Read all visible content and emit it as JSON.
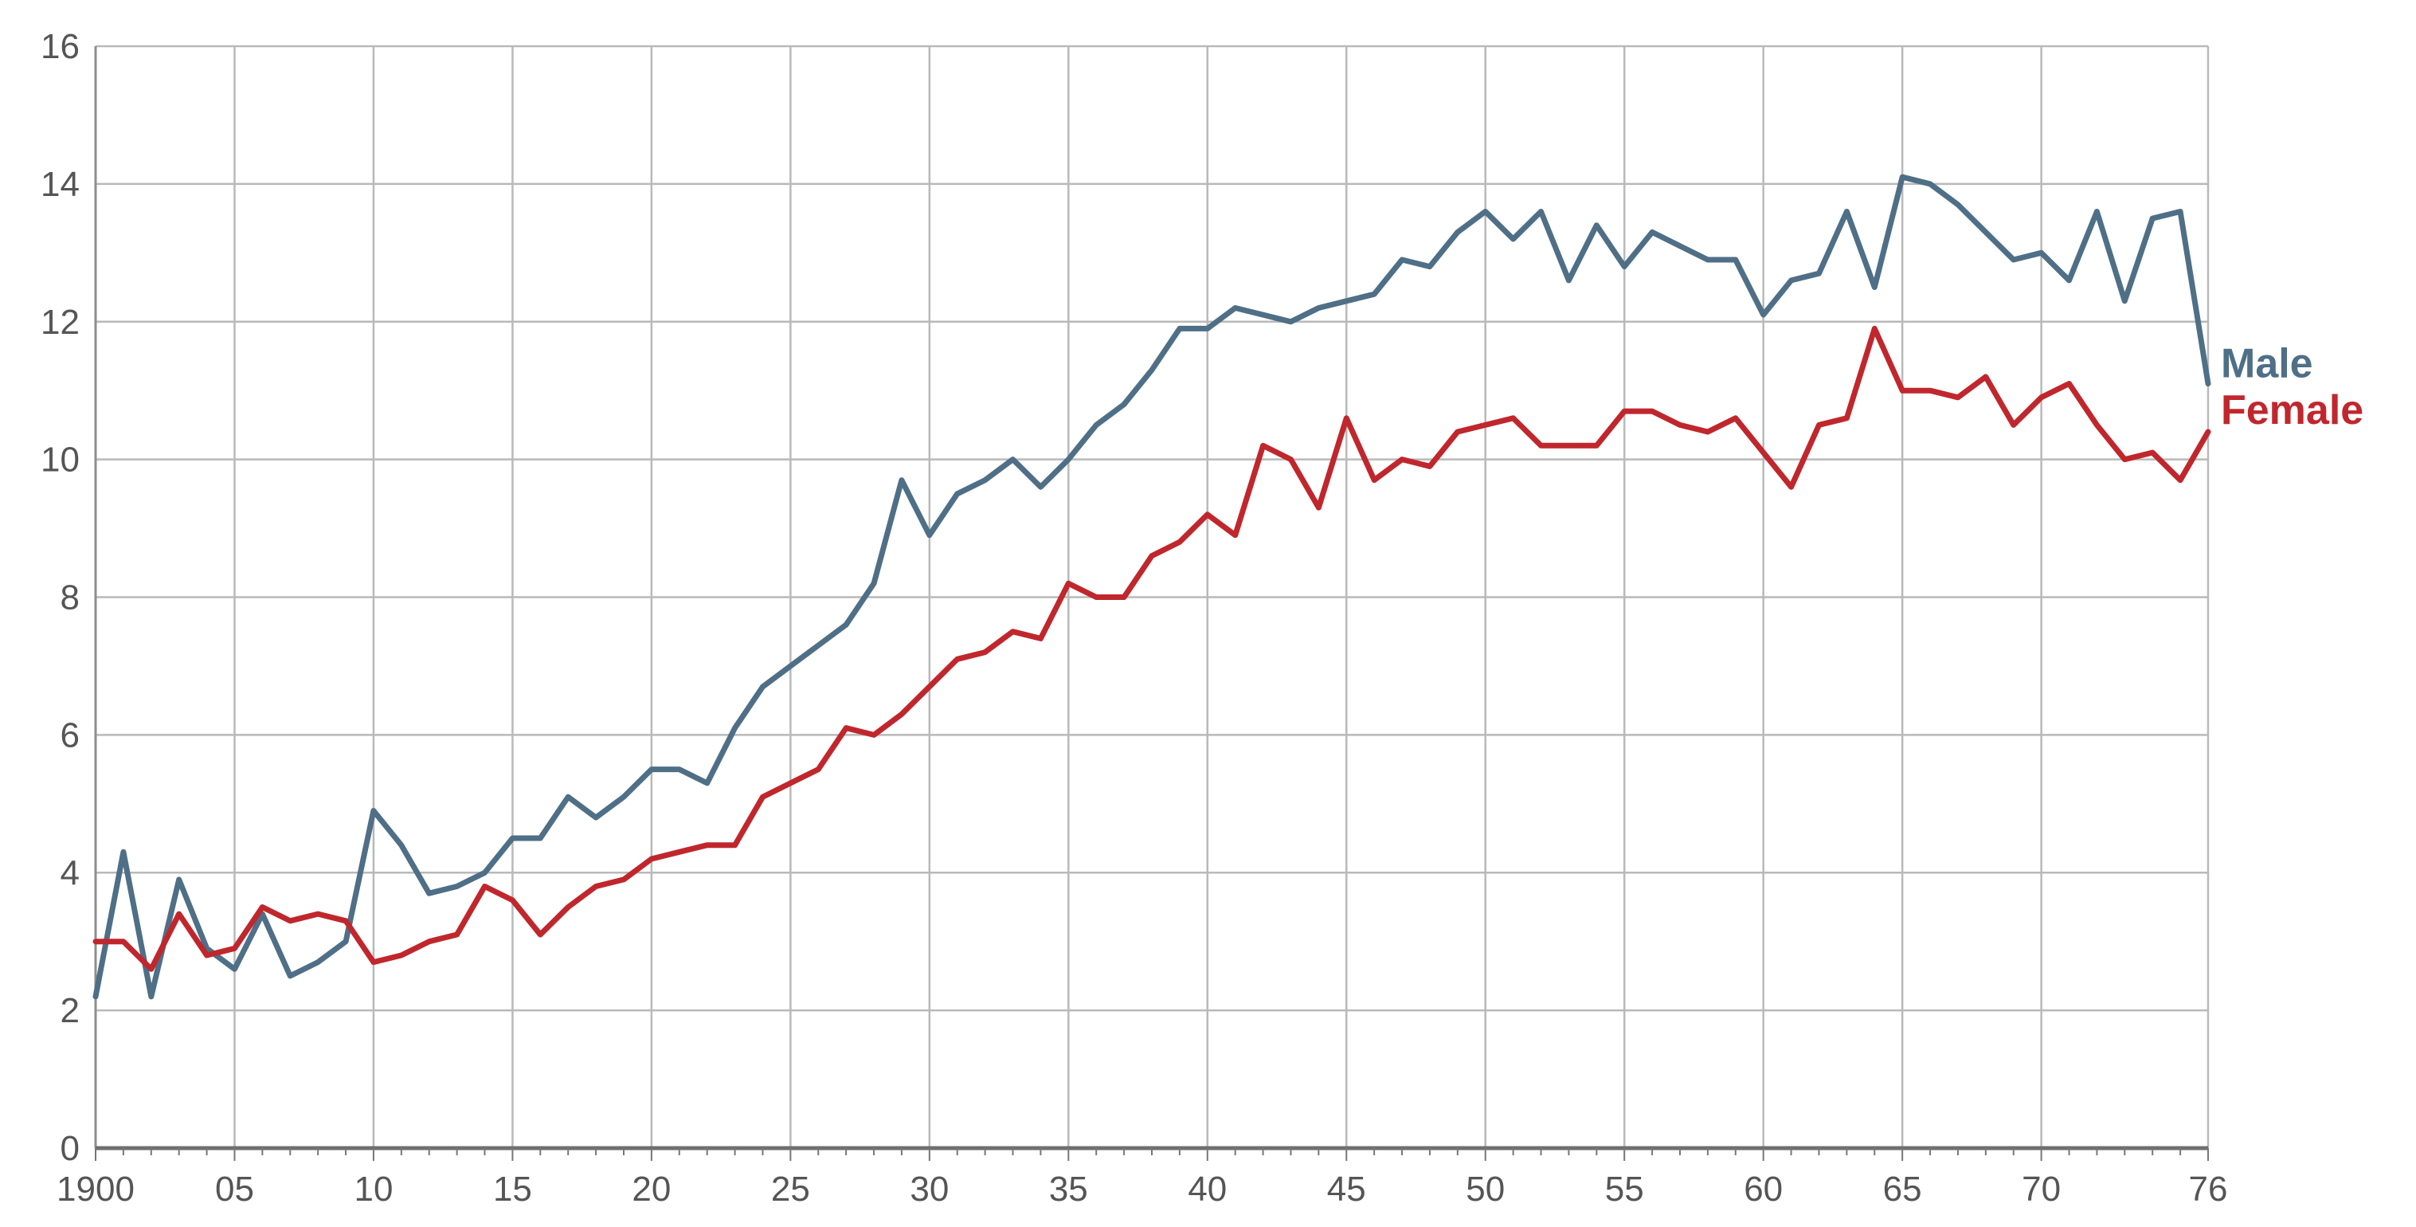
{
  "chart_data": {
    "type": "line",
    "title": "",
    "xlabel": "",
    "ylabel": "",
    "xlim": [
      1900,
      1976
    ],
    "ylim": [
      0,
      16
    ],
    "grid": true,
    "legend": "end-of-line labels on the right",
    "x_tick_values": [
      1900,
      1905,
      1910,
      1915,
      1920,
      1925,
      1930,
      1935,
      1940,
      1945,
      1950,
      1955,
      1960,
      1965,
      1970,
      1976
    ],
    "x_tick_labels": [
      "1900",
      "05",
      "10",
      "15",
      "20",
      "25",
      "30",
      "35",
      "40",
      "45",
      "50",
      "55",
      "60",
      "65",
      "70",
      "76"
    ],
    "y_tick_values": [
      0,
      2,
      4,
      6,
      8,
      10,
      12,
      14,
      16
    ],
    "y_tick_labels": [
      "0",
      "2",
      "4",
      "6",
      "8",
      "10",
      "12",
      "14",
      "16"
    ],
    "x": [
      1900,
      1901,
      1902,
      1903,
      1904,
      1905,
      1906,
      1907,
      1908,
      1909,
      1910,
      1911,
      1912,
      1913,
      1914,
      1915,
      1916,
      1917,
      1918,
      1919,
      1920,
      1921,
      1922,
      1923,
      1924,
      1925,
      1926,
      1927,
      1928,
      1929,
      1930,
      1931,
      1932,
      1933,
      1934,
      1935,
      1936,
      1937,
      1938,
      1939,
      1940,
      1941,
      1942,
      1943,
      1944,
      1945,
      1946,
      1947,
      1948,
      1949,
      1950,
      1951,
      1952,
      1953,
      1954,
      1955,
      1956,
      1957,
      1958,
      1959,
      1960,
      1961,
      1962,
      1963,
      1964,
      1965,
      1966,
      1967,
      1968,
      1969,
      1970,
      1971,
      1972,
      1973,
      1974,
      1975,
      1976
    ],
    "series": [
      {
        "name": "Male",
        "color": "#4f6f87",
        "values": [
          2.2,
          4.3,
          2.2,
          3.9,
          2.9,
          2.6,
          3.4,
          2.5,
          2.7,
          3.0,
          4.9,
          4.4,
          3.7,
          3.8,
          4.0,
          4.5,
          4.5,
          5.1,
          4.8,
          5.1,
          5.5,
          5.5,
          5.3,
          6.1,
          6.7,
          7.0,
          7.3,
          7.6,
          8.2,
          9.7,
          8.9,
          9.5,
          9.7,
          10.0,
          9.6,
          10.0,
          10.5,
          10.8,
          11.3,
          11.9,
          11.9,
          12.2,
          12.1,
          12.0,
          12.2,
          12.3,
          12.4,
          12.9,
          12.8,
          13.3,
          13.6,
          13.2,
          13.6,
          12.6,
          13.4,
          12.8,
          13.3,
          13.1,
          12.9,
          12.9,
          12.1,
          12.6,
          12.7,
          13.6,
          12.5,
          14.1,
          14.0,
          13.7,
          13.3,
          12.9,
          13.0,
          12.6,
          13.6,
          12.3,
          13.5,
          13.6,
          11.1
        ]
      },
      {
        "name": "Female",
        "color": "#c0272d",
        "values": [
          3.0,
          3.0,
          2.6,
          3.4,
          2.8,
          2.9,
          3.5,
          3.3,
          3.4,
          3.3,
          2.7,
          2.8,
          3.0,
          3.1,
          3.8,
          3.6,
          3.1,
          3.5,
          3.8,
          3.9,
          4.2,
          4.3,
          4.4,
          4.4,
          5.1,
          5.3,
          5.5,
          6.1,
          6.0,
          6.3,
          6.7,
          7.1,
          7.2,
          7.5,
          7.4,
          8.2,
          8.0,
          8.0,
          8.6,
          8.8,
          9.2,
          8.9,
          10.2,
          10.0,
          9.3,
          10.6,
          9.7,
          10.0,
          9.9,
          10.4,
          10.5,
          10.6,
          10.2,
          10.2,
          10.2,
          10.7,
          10.7,
          10.5,
          10.4,
          10.6,
          10.1,
          9.6,
          10.5,
          10.6,
          11.9,
          11.0,
          11.0,
          10.9,
          11.2,
          10.5,
          10.9,
          11.1,
          10.5,
          10.0,
          10.1,
          9.7,
          10.4
        ]
      }
    ]
  }
}
